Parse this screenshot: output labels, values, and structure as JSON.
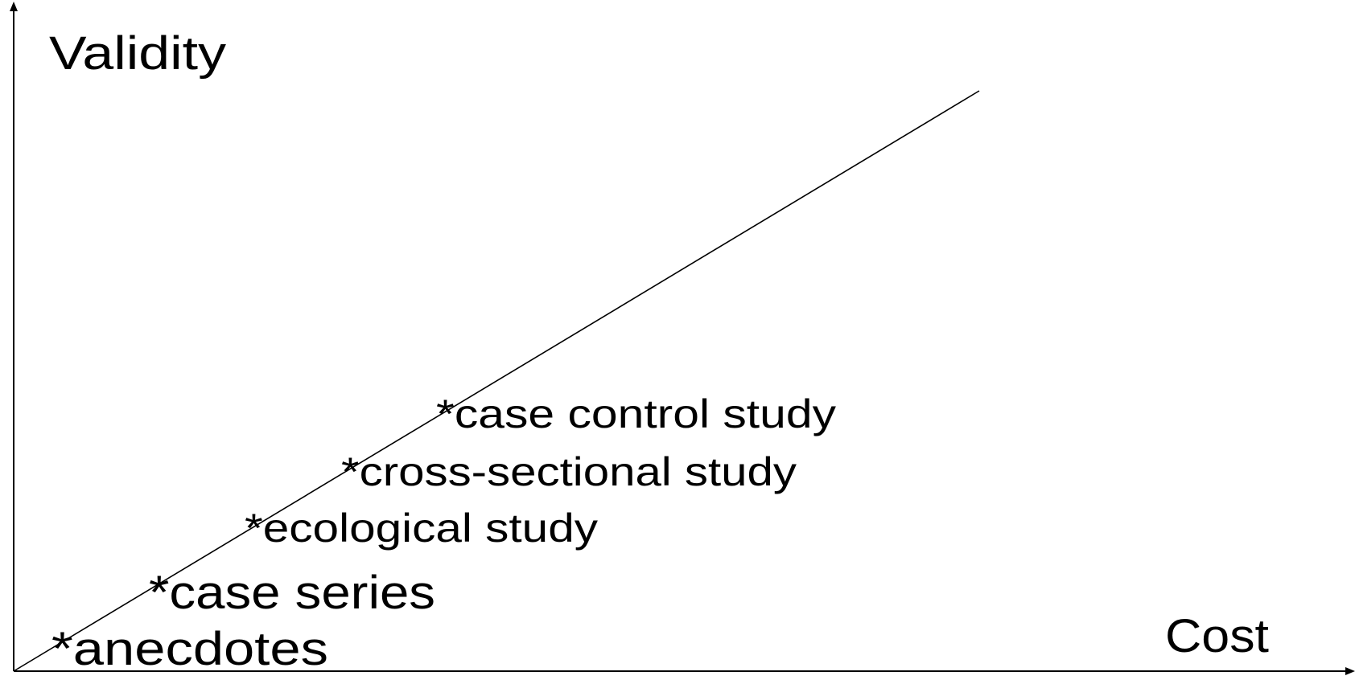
{
  "axes": {
    "y_label": "Validity",
    "x_label": "Cost"
  },
  "items": [
    {
      "label": "*anecdotes"
    },
    {
      "label": "*case series"
    },
    {
      "label": "*ecological study"
    },
    {
      "label": "*cross-sectional study"
    },
    {
      "label": "*case control study"
    }
  ]
}
